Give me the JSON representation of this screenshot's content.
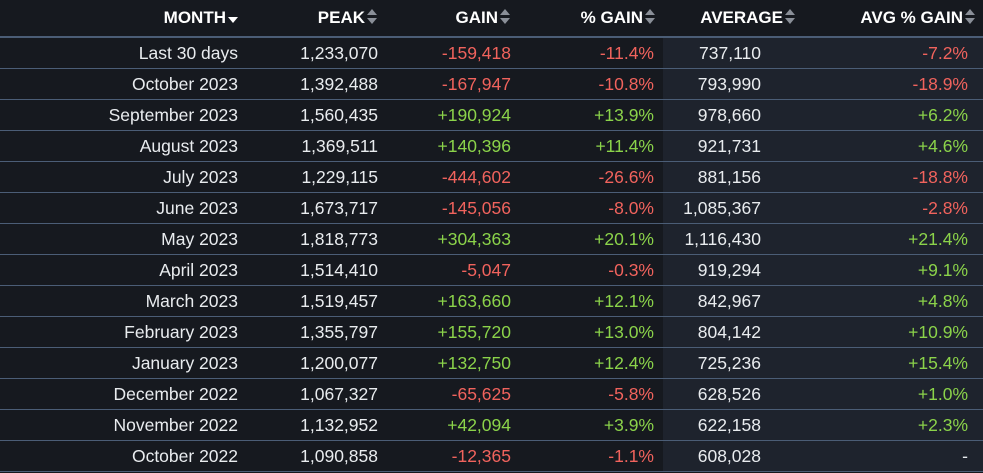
{
  "colors": {
    "background": "#16191f",
    "highlight_column": "#1e232d",
    "row_border": "#4b5d76",
    "negative": "#f1635d",
    "positive": "#8bd34a",
    "text": "#e9ecef"
  },
  "table": {
    "headers": {
      "month": "MONTH",
      "peak": "PEAK",
      "gain": "GAIN",
      "pct_gain": "% GAIN",
      "average": "AVERAGE",
      "avg_pct_gain": "AVG % GAIN"
    },
    "sort": {
      "column": "month",
      "direction": "descending",
      "icon": "caret-down-icon"
    },
    "rows": [
      {
        "month": "Last 30 days",
        "peak": "1,233,070",
        "gain": "-159,418",
        "pct_gain": "-11.4%",
        "average": "737,110",
        "avg_pct_gain": "-7.2%"
      },
      {
        "month": "October 2023",
        "peak": "1,392,488",
        "gain": "-167,947",
        "pct_gain": "-10.8%",
        "average": "793,990",
        "avg_pct_gain": "-18.9%"
      },
      {
        "month": "September 2023",
        "peak": "1,560,435",
        "gain": "+190,924",
        "pct_gain": "+13.9%",
        "average": "978,660",
        "avg_pct_gain": "+6.2%"
      },
      {
        "month": "August 2023",
        "peak": "1,369,511",
        "gain": "+140,396",
        "pct_gain": "+11.4%",
        "average": "921,731",
        "avg_pct_gain": "+4.6%"
      },
      {
        "month": "July 2023",
        "peak": "1,229,115",
        "gain": "-444,602",
        "pct_gain": "-26.6%",
        "average": "881,156",
        "avg_pct_gain": "-18.8%"
      },
      {
        "month": "June 2023",
        "peak": "1,673,717",
        "gain": "-145,056",
        "pct_gain": "-8.0%",
        "average": "1,085,367",
        "avg_pct_gain": "-2.8%"
      },
      {
        "month": "May 2023",
        "peak": "1,818,773",
        "gain": "+304,363",
        "pct_gain": "+20.1%",
        "average": "1,116,430",
        "avg_pct_gain": "+21.4%"
      },
      {
        "month": "April 2023",
        "peak": "1,514,410",
        "gain": "-5,047",
        "pct_gain": "-0.3%",
        "average": "919,294",
        "avg_pct_gain": "+9.1%"
      },
      {
        "month": "March 2023",
        "peak": "1,519,457",
        "gain": "+163,660",
        "pct_gain": "+12.1%",
        "average": "842,967",
        "avg_pct_gain": "+4.8%"
      },
      {
        "month": "February 2023",
        "peak": "1,355,797",
        "gain": "+155,720",
        "pct_gain": "+13.0%",
        "average": "804,142",
        "avg_pct_gain": "+10.9%"
      },
      {
        "month": "January 2023",
        "peak": "1,200,077",
        "gain": "+132,750",
        "pct_gain": "+12.4%",
        "average": "725,236",
        "avg_pct_gain": "+15.4%"
      },
      {
        "month": "December 2022",
        "peak": "1,067,327",
        "gain": "-65,625",
        "pct_gain": "-5.8%",
        "average": "628,526",
        "avg_pct_gain": "+1.0%"
      },
      {
        "month": "November 2022",
        "peak": "1,132,952",
        "gain": "+42,094",
        "pct_gain": "+3.9%",
        "average": "622,158",
        "avg_pct_gain": "+2.3%"
      },
      {
        "month": "October 2022",
        "peak": "1,090,858",
        "gain": "-12,365",
        "pct_gain": "-1.1%",
        "average": "608,028",
        "avg_pct_gain": "-"
      }
    ]
  }
}
